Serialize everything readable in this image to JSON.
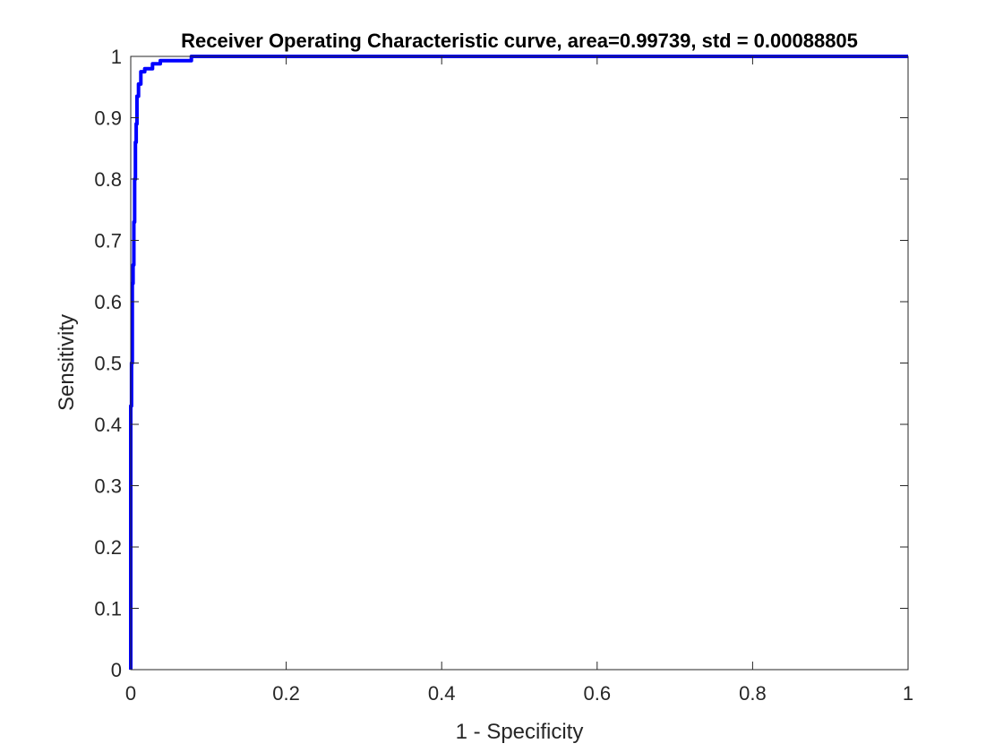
{
  "chart_data": {
    "type": "line",
    "title": "Receiver Operating Characteristic curve, area=0.99739, std = 0.00088805",
    "xlabel": "1 - Specificity",
    "ylabel": "Sensitivity",
    "xlim": [
      0,
      1
    ],
    "ylim": [
      0,
      1
    ],
    "x_ticks": [
      0,
      0.2,
      0.4,
      0.6,
      0.8,
      1
    ],
    "y_ticks": [
      0,
      0.1,
      0.2,
      0.3,
      0.4,
      0.5,
      0.6,
      0.7,
      0.8,
      0.9,
      1
    ],
    "x_tick_labels": [
      "0",
      "0.2",
      "0.4",
      "0.6",
      "0.8",
      "1"
    ],
    "y_tick_labels": [
      "0",
      "0.1",
      "0.2",
      "0.3",
      "0.4",
      "0.5",
      "0.6",
      "0.7",
      "0.8",
      "0.9",
      "1"
    ],
    "grid": false,
    "box": true,
    "series": [
      {
        "color": "#0000ff",
        "x": [
          0,
          0,
          0.001,
          0.001,
          0.002,
          0.002,
          0.003,
          0.003,
          0.004,
          0.004,
          0.005,
          0.005,
          0.006,
          0.006,
          0.007,
          0.007,
          0.008,
          0.008,
          0.01,
          0.01,
          0.013,
          0.013,
          0.018,
          0.018,
          0.028,
          0.028,
          0.038,
          0.038,
          0.078,
          0.078,
          0.12,
          1
        ],
        "y": [
          0,
          0.43,
          0.43,
          0.5,
          0.5,
          0.63,
          0.63,
          0.66,
          0.66,
          0.73,
          0.73,
          0.8,
          0.8,
          0.86,
          0.86,
          0.89,
          0.89,
          0.935,
          0.935,
          0.955,
          0.955,
          0.975,
          0.975,
          0.98,
          0.98,
          0.988,
          0.988,
          0.993,
          0.993,
          1.0,
          1.0,
          1.0
        ]
      }
    ]
  }
}
